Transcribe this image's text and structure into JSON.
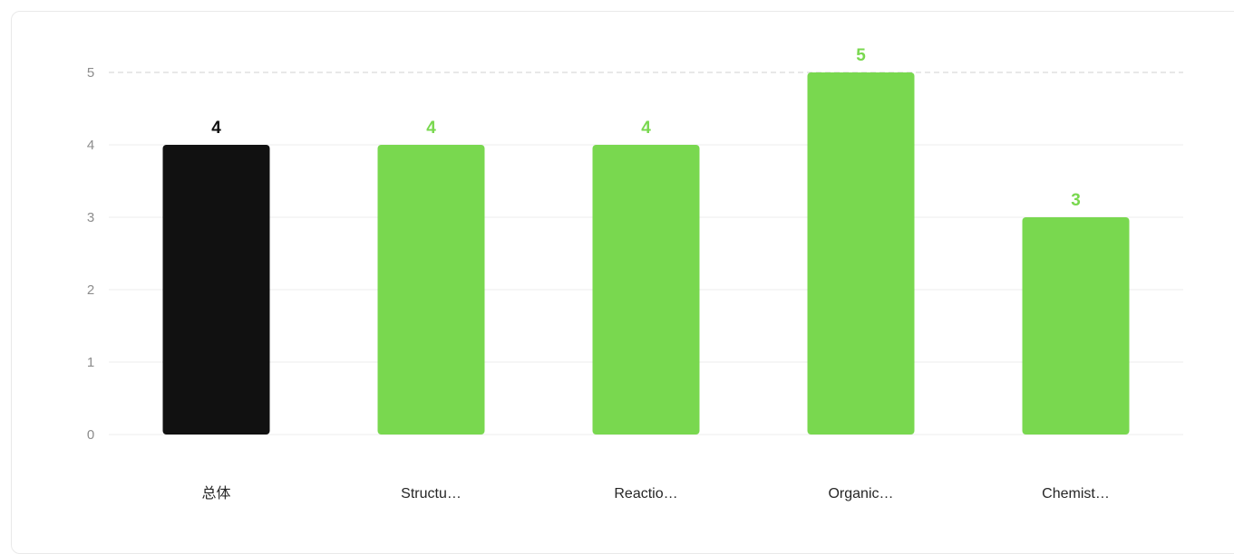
{
  "chart_data": {
    "type": "bar",
    "categories": [
      "总体",
      "Structu…",
      "Reactio…",
      "Organic…",
      "Chemist…"
    ],
    "values": [
      4,
      4,
      4,
      5,
      3
    ],
    "ylim": [
      0,
      5
    ],
    "yticks": [
      0,
      1,
      2,
      3,
      4,
      5
    ],
    "grid": true,
    "colors": {
      "highlight": "#111111",
      "default": "#79d84f",
      "grid": "#ececec",
      "max_line": "#d0d0d0",
      "ytick": "#8c8c8c",
      "xtick": "#262626"
    },
    "highlight_index": 0
  }
}
